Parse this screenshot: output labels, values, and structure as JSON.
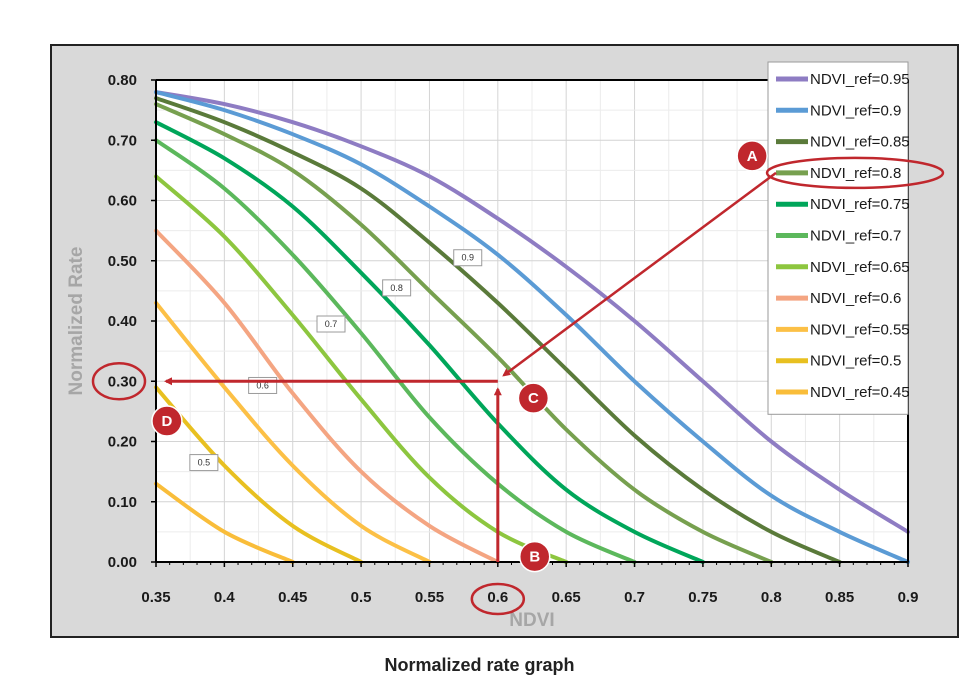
{
  "caption": "Normalized rate graph",
  "chart_data": {
    "type": "line",
    "xlabel": "NDVI",
    "ylabel": "Normalized Rate",
    "xlim": [
      0.35,
      0.9
    ],
    "ylim": [
      0.0,
      0.8
    ],
    "x_ticks": [
      "0.35",
      "0.4",
      "0.45",
      "0.5",
      "0.55",
      "0.6",
      "0.65",
      "0.7",
      "0.75",
      "0.8",
      "0.85",
      "0.9"
    ],
    "y_ticks": [
      "0.00",
      "0.10",
      "0.20",
      "0.30",
      "0.40",
      "0.50",
      "0.60",
      "0.70",
      "0.80"
    ],
    "grid": true,
    "legend_position": "top-right",
    "x": [
      0.35,
      0.4,
      0.45,
      0.5,
      0.55,
      0.6,
      0.65,
      0.7,
      0.75,
      0.8,
      0.85,
      0.9
    ],
    "series": [
      {
        "name": "NDVI_ref=0.95",
        "color": "#8e7cc3",
        "values": [
          0.78,
          0.76,
          0.73,
          0.69,
          0.64,
          0.57,
          0.49,
          0.4,
          0.3,
          0.2,
          0.12,
          0.05
        ]
      },
      {
        "name": "NDVI_ref=0.9",
        "color": "#5b9bd5",
        "values": [
          0.78,
          0.75,
          0.71,
          0.66,
          0.59,
          0.51,
          0.41,
          0.3,
          0.2,
          0.11,
          0.05,
          0.0
        ]
      },
      {
        "name": "NDVI_ref=0.85",
        "color": "#5a7a3a",
        "values": [
          0.77,
          0.73,
          0.68,
          0.62,
          0.53,
          0.43,
          0.32,
          0.21,
          0.12,
          0.05,
          0.0,
          null
        ]
      },
      {
        "name": "NDVI_ref=0.8",
        "color": "#77a04f",
        "values": [
          0.76,
          0.71,
          0.65,
          0.56,
          0.45,
          0.34,
          0.22,
          0.12,
          0.05,
          0.0,
          null,
          null
        ]
      },
      {
        "name": "NDVI_ref=0.75",
        "color": "#00a65a",
        "values": [
          0.73,
          0.67,
          0.59,
          0.48,
          0.36,
          0.23,
          0.12,
          0.05,
          0.0,
          null,
          null,
          null
        ]
      },
      {
        "name": "NDVI_ref=0.7",
        "color": "#5cb85c",
        "values": [
          0.7,
          0.62,
          0.51,
          0.38,
          0.24,
          0.13,
          0.05,
          0.0,
          null,
          null,
          null,
          null
        ]
      },
      {
        "name": "NDVI_ref=0.65",
        "color": "#8dc63f",
        "values": [
          0.64,
          0.54,
          0.41,
          0.27,
          0.14,
          0.05,
          0.0,
          null,
          null,
          null,
          null,
          null
        ]
      },
      {
        "name": "NDVI_ref=0.6",
        "color": "#f4a582",
        "values": [
          0.55,
          0.43,
          0.28,
          0.15,
          0.06,
          0.0,
          null,
          null,
          null,
          null,
          null,
          null
        ]
      },
      {
        "name": "NDVI_ref=0.55",
        "color": "#fcc046",
        "values": [
          0.43,
          0.29,
          0.16,
          0.06,
          0.0,
          null,
          null,
          null,
          null,
          null,
          null,
          null
        ]
      },
      {
        "name": "NDVI_ref=0.5",
        "color": "#e8c020",
        "values": [
          0.29,
          0.16,
          0.06,
          0.0,
          null,
          null,
          null,
          null,
          null,
          null,
          null,
          null
        ]
      },
      {
        "name": "NDVI_ref=0.45",
        "color": "#f9bd3a",
        "values": [
          0.13,
          0.05,
          0.0,
          null,
          null,
          null,
          null,
          null,
          null,
          null,
          null,
          null
        ]
      }
    ],
    "curve_labels": [
      {
        "text": "0.9",
        "x": 0.578,
        "y": 0.505
      },
      {
        "text": "0.8",
        "x": 0.526,
        "y": 0.455
      },
      {
        "text": "0.7",
        "x": 0.478,
        "y": 0.395
      },
      {
        "text": "0.6",
        "x": 0.428,
        "y": 0.293
      },
      {
        "text": "0.5",
        "x": 0.385,
        "y": 0.165
      }
    ],
    "annotations": {
      "markers": [
        {
          "label": "A",
          "x": 0.786,
          "y": 0.674
        },
        {
          "label": "B",
          "x": 0.627,
          "y": 0.009
        },
        {
          "label": "C",
          "x": 0.626,
          "y": 0.272
        },
        {
          "label": "D",
          "x": 0.358,
          "y": 0.234
        }
      ],
      "highlight_legend_entry": "NDVI_ref=0.8",
      "highlight_x_tick": "0.6",
      "highlight_y_tick": "0.30",
      "trace": {
        "x": 0.6,
        "y": 0.3,
        "color": "#c0272d"
      }
    }
  }
}
